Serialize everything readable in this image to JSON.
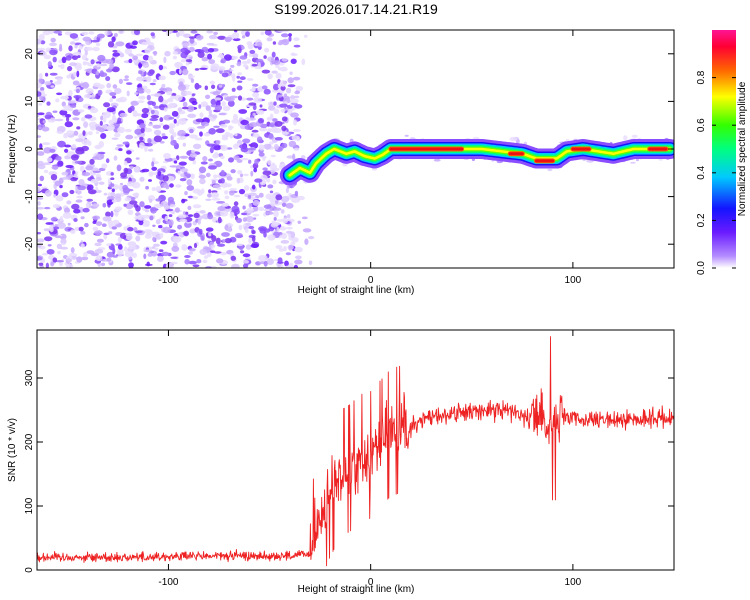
{
  "title": "S199.2026.017.14.21.R19",
  "chart_data": [
    {
      "type": "heatmap",
      "xlabel": "Height of straight line (km)",
      "ylabel": "Frequency (Hz)",
      "xlim": [
        -165,
        150
      ],
      "ylim": [
        -25,
        25
      ],
      "xticks": [
        -100,
        0,
        100
      ],
      "yticks": [
        -20,
        -10,
        0,
        10,
        20
      ],
      "xtick_labels": [
        "-100",
        "0",
        "100"
      ],
      "ytick_labels": [
        "-20",
        "-10",
        "0",
        "10",
        "20"
      ],
      "noise_region_x": [
        -165,
        -35
      ],
      "ridge_points": [
        {
          "x": -40,
          "y": -5.5
        },
        {
          "x": -35,
          "y": -4
        },
        {
          "x": -30,
          "y": -5
        },
        {
          "x": -27,
          "y": -3
        },
        {
          "x": -22,
          "y": -1
        },
        {
          "x": -18,
          "y": 0
        },
        {
          "x": -12,
          "y": -1
        },
        {
          "x": -8,
          "y": -0.5
        },
        {
          "x": -3,
          "y": -1.5
        },
        {
          "x": 2,
          "y": -2
        },
        {
          "x": 6,
          "y": -1.2
        },
        {
          "x": 10,
          "y": 0
        },
        {
          "x": 30,
          "y": 0
        },
        {
          "x": 55,
          "y": 0
        },
        {
          "x": 65,
          "y": -0.5
        },
        {
          "x": 75,
          "y": -1
        },
        {
          "x": 82,
          "y": -2
        },
        {
          "x": 92,
          "y": -2
        },
        {
          "x": 97,
          "y": -0.5
        },
        {
          "x": 105,
          "y": 0
        },
        {
          "x": 120,
          "y": -1
        },
        {
          "x": 130,
          "y": 0
        },
        {
          "x": 148,
          "y": 0
        }
      ],
      "hot_segments": [
        {
          "x": [
            10,
            45
          ],
          "y": 0
        },
        {
          "x": 72,
          "y": -1
        },
        {
          "x": [
            82,
            90
          ],
          "y": -2.5
        },
        {
          "x": [
            100,
            108
          ],
          "y": 0
        },
        {
          "x": [
            138,
            146
          ],
          "y": 0
        }
      ]
    },
    {
      "type": "colorbar",
      "label": "Normalized spectral amplitude",
      "range": [
        0,
        1
      ],
      "ticks": [
        0.0,
        0.2,
        0.4,
        0.6,
        0.8
      ],
      "tick_labels": [
        "0.0",
        "0.2",
        "0.4",
        "0.6",
        "0.8"
      ]
    },
    {
      "type": "line",
      "xlabel": "Height of straight line (km)",
      "ylabel": "SNR (10 * v/v)",
      "xlim": [
        -165,
        150
      ],
      "ylim": [
        0,
        375
      ],
      "xticks": [
        -100,
        0,
        100
      ],
      "yticks": [
        0,
        100,
        200,
        300
      ],
      "xtick_labels": [
        "-100",
        "0",
        "100"
      ],
      "ytick_labels": [
        "0",
        "100",
        "200",
        "300"
      ],
      "series": [
        {
          "name": "SNR",
          "color": "#ee2222",
          "x": [
            -165,
            -120,
            -80,
            -40,
            -30,
            -25,
            -20,
            -15,
            -10,
            -5,
            0,
            10,
            20,
            30,
            50,
            70,
            80,
            85,
            88,
            90,
            95,
            110,
            130,
            150
          ],
          "values": [
            20,
            20,
            22,
            22,
            25,
            80,
            120,
            150,
            160,
            175,
            180,
            215,
            225,
            240,
            248,
            250,
            240,
            240,
            230,
            240,
            238,
            232,
            236,
            238
          ]
        }
      ]
    }
  ]
}
